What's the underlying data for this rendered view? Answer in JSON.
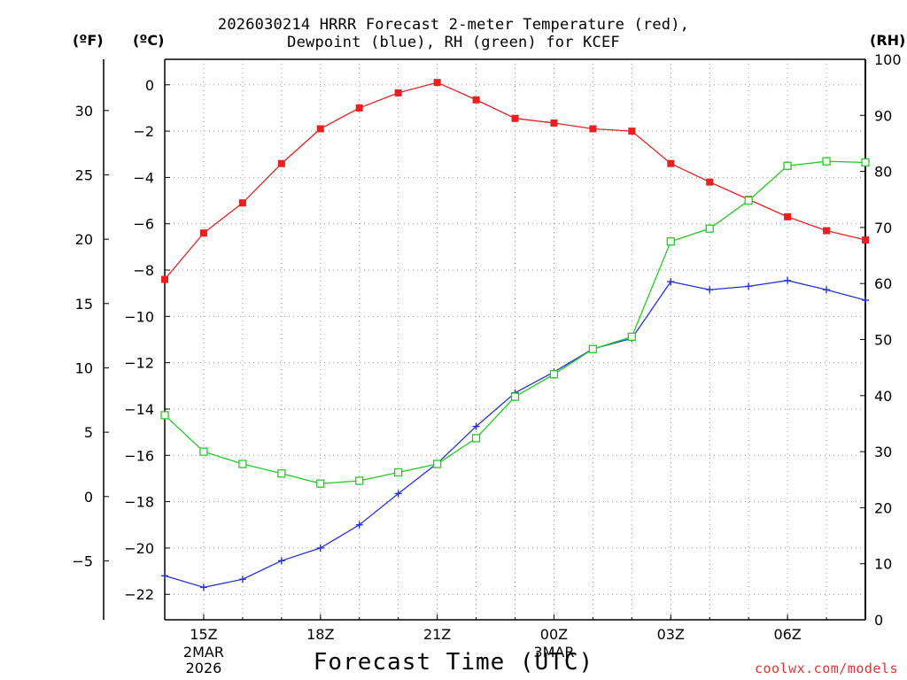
{
  "title": {
    "line1": "2026030214 HRRR Forecast 2-meter Temperature (red),",
    "line2": "Dewpoint (blue), RH (green) for KCEF"
  },
  "units": {
    "fahrenheit": "(ºF)",
    "celsius": "(ºC)",
    "rh": "(RH)"
  },
  "xlabel": "Forecast Time (UTC)",
  "credit": "coolwx.com/models",
  "colors": {
    "temperature": "#e82020",
    "dewpoint": "#2233dd",
    "rh": "#22cc22",
    "grid": "#999999"
  },
  "chart_data": {
    "type": "line",
    "x_hours": [
      14,
      15,
      16,
      17,
      18,
      19,
      20,
      21,
      22,
      23,
      24,
      25,
      26,
      27,
      28,
      29,
      30,
      31,
      32
    ],
    "x_ticks": [
      {
        "hour": 15,
        "label": "15Z",
        "sub": [
          "2MAR",
          "2026"
        ]
      },
      {
        "hour": 18,
        "label": "18Z",
        "sub": []
      },
      {
        "hour": 21,
        "label": "21Z",
        "sub": []
      },
      {
        "hour": 24,
        "label": "00Z",
        "sub": [
          "3MAR"
        ]
      },
      {
        "hour": 27,
        "label": "03Z",
        "sub": []
      },
      {
        "hour": 30,
        "label": "06Z",
        "sub": []
      }
    ],
    "celsius_axis": {
      "range": [
        -23.1,
        1.1
      ],
      "ticks": [
        0,
        -2,
        -4,
        -6,
        -8,
        -10,
        -12,
        -14,
        -16,
        -18,
        -20,
        -22
      ],
      "tick_labels": [
        "0",
        "−2",
        "−4",
        "−6",
        "−8",
        "−10",
        "−12",
        "−14",
        "−16",
        "−18",
        "−20",
        "−22"
      ]
    },
    "fahrenheit_axis": {
      "ticks": [
        30,
        25,
        20,
        15,
        10,
        5,
        0,
        -5
      ],
      "tick_labels": [
        "30",
        "25",
        "20",
        "15",
        "10",
        "5",
        "0",
        "−5"
      ]
    },
    "rh_axis": {
      "range": [
        0,
        100
      ],
      "ticks": [
        0,
        10,
        20,
        30,
        40,
        50,
        60,
        70,
        80,
        90,
        100
      ],
      "tick_labels": [
        "0",
        "10",
        "20",
        "30",
        "40",
        "50",
        "60",
        "70",
        "80",
        "90",
        "100"
      ]
    },
    "series": [
      {
        "name": "Temperature",
        "axis": "celsius",
        "marker": "filled-square",
        "color": "#e82020",
        "values": [
          -8.4,
          -6.4,
          -5.1,
          -3.4,
          -1.9,
          -1.0,
          -0.35,
          0.1,
          -0.65,
          -1.45,
          -1.65,
          -1.9,
          -2.0,
          -3.4,
          -4.2,
          -4.95,
          -5.7,
          -6.3,
          -6.7
        ]
      },
      {
        "name": "Dewpoint",
        "axis": "celsius",
        "marker": "plus",
        "color": "#2233dd",
        "values": [
          -21.2,
          -21.7,
          -21.35,
          -20.55,
          -20.0,
          -19.0,
          -17.65,
          -16.35,
          -14.75,
          -13.3,
          -12.4,
          -11.4,
          -10.95,
          -8.5,
          -8.85,
          -8.7,
          -8.45,
          -8.85,
          -9.3
        ]
      },
      {
        "name": "RH",
        "axis": "rh",
        "marker": "open-square",
        "color": "#22cc22",
        "values": [
          36.5,
          30.0,
          27.8,
          26.1,
          24.3,
          24.8,
          26.3,
          27.8,
          32.4,
          39.8,
          43.8,
          48.3,
          50.5,
          67.5,
          69.8,
          74.8,
          81.0,
          81.8,
          81.6
        ]
      }
    ]
  }
}
